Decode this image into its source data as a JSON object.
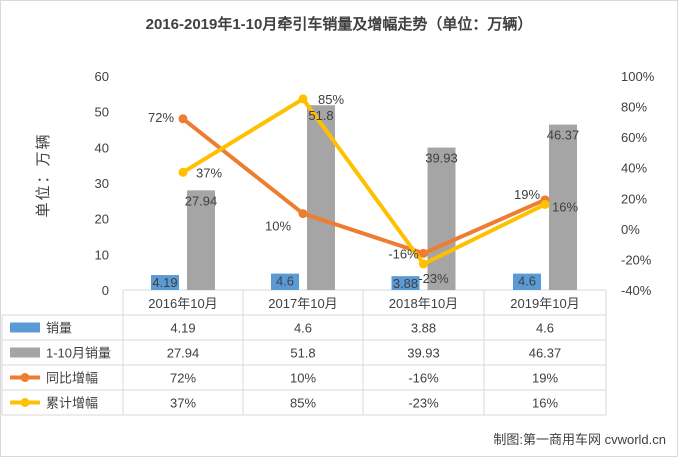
{
  "chart_data": {
    "type": "bar",
    "title": "2016-2019年1-10月牵引车销量及增幅走势（单位：万辆）",
    "ylabel": "单位：万辆",
    "categories": [
      "2016年10月",
      "2017年10月",
      "2018年10月",
      "2019年10月"
    ],
    "ylim": [
      0,
      60
    ],
    "y2lim": [
      -0.4,
      1.0
    ],
    "yticks": [
      "60",
      "50",
      "40",
      "30",
      "20",
      "10",
      "0"
    ],
    "y2ticks": [
      "100%",
      "80%",
      "60%",
      "40%",
      "20%",
      "0%",
      "-20%",
      "-40%"
    ],
    "series": [
      {
        "name": "销量",
        "kind": "bar",
        "axis": "left",
        "color": "#5B9BD5",
        "values": [
          4.19,
          4.6,
          3.88,
          4.6
        ],
        "labels": [
          "4.19",
          "4.6",
          "3.88",
          "4.6"
        ]
      },
      {
        "name": "1-10月销量",
        "kind": "bar",
        "axis": "left",
        "color": "#A5A5A5",
        "values": [
          27.94,
          51.8,
          39.93,
          46.37
        ],
        "labels": [
          "27.94",
          "51.8",
          "39.93",
          "46.37"
        ]
      },
      {
        "name": "同比增幅",
        "kind": "line",
        "axis": "right",
        "color": "#ED7D31",
        "values": [
          0.72,
          0.1,
          -0.16,
          0.19
        ],
        "labels": [
          "72%",
          "10%",
          "-16%",
          "19%"
        ]
      },
      {
        "name": "累计增幅",
        "kind": "line",
        "axis": "right",
        "color": "#FFC000",
        "values": [
          0.37,
          0.85,
          -0.23,
          0.16
        ],
        "labels": [
          "37%",
          "85%",
          "-23%",
          "16%"
        ]
      }
    ],
    "grid": false,
    "legend": "data-table-below",
    "source_note": "制图:第一商用车网 cvworld.cn"
  }
}
